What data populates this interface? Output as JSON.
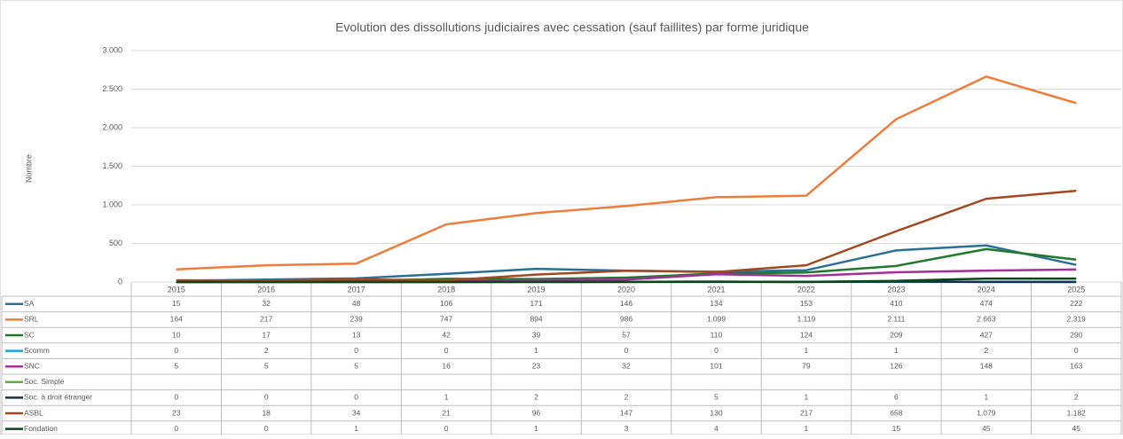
{
  "chart_data": {
    "type": "line",
    "title": "Evolution des dissollutions judiciaires avec cessation (sauf faillites) par forme juridique",
    "y_label": "Nombre",
    "categories": [
      "2015",
      "2016",
      "2017",
      "2018",
      "2019",
      "2020",
      "2021",
      "2022",
      "2023",
      "2024",
      "2025"
    ],
    "ylim": [
      0,
      3000
    ],
    "yticks": [
      0,
      500,
      {
        "value": 1000,
        "label": "1.000"
      },
      {
        "value": 1500,
        "label": "1.500"
      },
      {
        "value": 2000,
        "label": "2.000"
      },
      {
        "value": 2500,
        "label": "2.500"
      },
      {
        "value": 3000,
        "label": "3.000"
      }
    ],
    "grid": true,
    "series": [
      {
        "name": "SA",
        "color": "#2a6f97",
        "values": [
          15,
          32,
          48,
          106,
          171,
          146,
          134,
          153,
          410,
          474,
          222
        ]
      },
      {
        "name": "SRL",
        "color": "#ed7d3a",
        "values": [
          164,
          217,
          239,
          747,
          894,
          986,
          1099,
          1119,
          2111,
          2663,
          2319
        ],
        "value_labels": [
          "164",
          "217",
          "239",
          "747",
          "894",
          "986",
          "1.099",
          "1.119",
          "2.111",
          "2.663",
          "2.319"
        ]
      },
      {
        "name": "SC",
        "color": "#1e7a2a",
        "values": [
          10,
          17,
          13,
          42,
          39,
          57,
          110,
          124,
          209,
          427,
          290
        ]
      },
      {
        "name": "Scomm",
        "color": "#1aa3d8",
        "values": [
          0,
          2,
          0,
          0,
          1,
          0,
          0,
          1,
          1,
          2,
          0
        ]
      },
      {
        "name": "SNC",
        "color": "#a62e9a",
        "values": [
          5,
          5,
          5,
          16,
          23,
          32,
          101,
          79,
          126,
          148,
          163
        ]
      },
      {
        "name": "Soc. Simple",
        "color": "#5bb040",
        "values": [
          null,
          null,
          null,
          null,
          null,
          null,
          null,
          null,
          null,
          null,
          null
        ]
      },
      {
        "name": "Soc. à droit étranger",
        "color": "#13304f",
        "values": [
          0,
          0,
          0,
          1,
          2,
          2,
          5,
          1,
          6,
          1,
          2
        ]
      },
      {
        "name": "ASBL",
        "color": "#a4471f",
        "values": [
          23,
          18,
          34,
          21,
          96,
          147,
          130,
          217,
          658,
          1079,
          1182
        ],
        "value_labels": [
          "23",
          "18",
          "34",
          "21",
          "96",
          "147",
          "130",
          "217",
          "658",
          "1.079",
          "1.182"
        ]
      },
      {
        "name": "Fondation",
        "color": "#0d4418",
        "values": [
          0,
          0,
          1,
          0,
          1,
          3,
          4,
          1,
          15,
          45,
          45
        ]
      }
    ]
  }
}
